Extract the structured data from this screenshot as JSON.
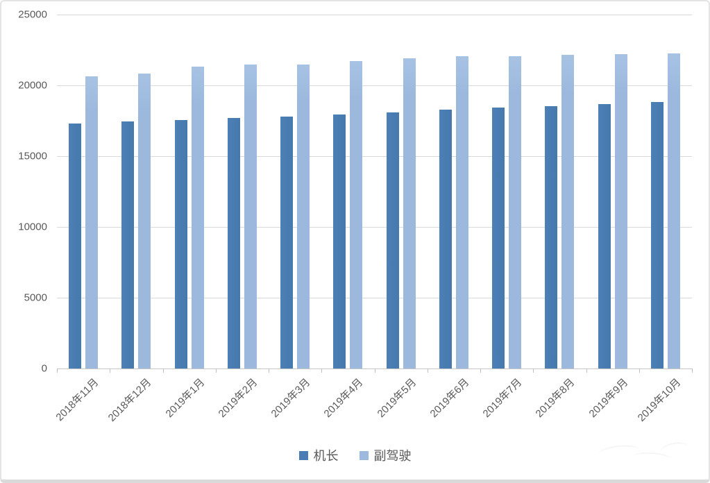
{
  "chart_data": {
    "type": "bar",
    "title": "",
    "categories": [
      "2018年11月",
      "2018年12月",
      "2019年1月",
      "2019年2月",
      "2019年3月",
      "2019年4月",
      "2019年5月",
      "2019年6月",
      "2019年7月",
      "2019年8月",
      "2019年9月",
      "2019年10月"
    ],
    "series": [
      {
        "name": "机长",
        "color": "#4a7db4",
        "values": [
          17300,
          17450,
          17550,
          17700,
          17800,
          17950,
          18100,
          18300,
          18450,
          18550,
          18700,
          18800
        ]
      },
      {
        "name": "副驾驶",
        "color": "#9dbade",
        "values": [
          20650,
          20850,
          21300,
          21450,
          21450,
          21700,
          21900,
          22050,
          22050,
          22150,
          22200,
          22250
        ]
      }
    ],
    "ylim": [
      0,
      25000
    ],
    "yticks": [
      0,
      5000,
      10000,
      15000,
      20000,
      25000
    ],
    "ytick_labels": [
      "0",
      "5000",
      "10000",
      "15000",
      "20000",
      "25000"
    ],
    "grid": "horizontal",
    "legend_position": "bottom",
    "xlabel": "",
    "ylabel": ""
  },
  "colors": {
    "gridline": "#d9d9d9",
    "axis_line": "#c6c6c6",
    "tick_text": "#595959",
    "frame_border": "#e4e4e4"
  }
}
